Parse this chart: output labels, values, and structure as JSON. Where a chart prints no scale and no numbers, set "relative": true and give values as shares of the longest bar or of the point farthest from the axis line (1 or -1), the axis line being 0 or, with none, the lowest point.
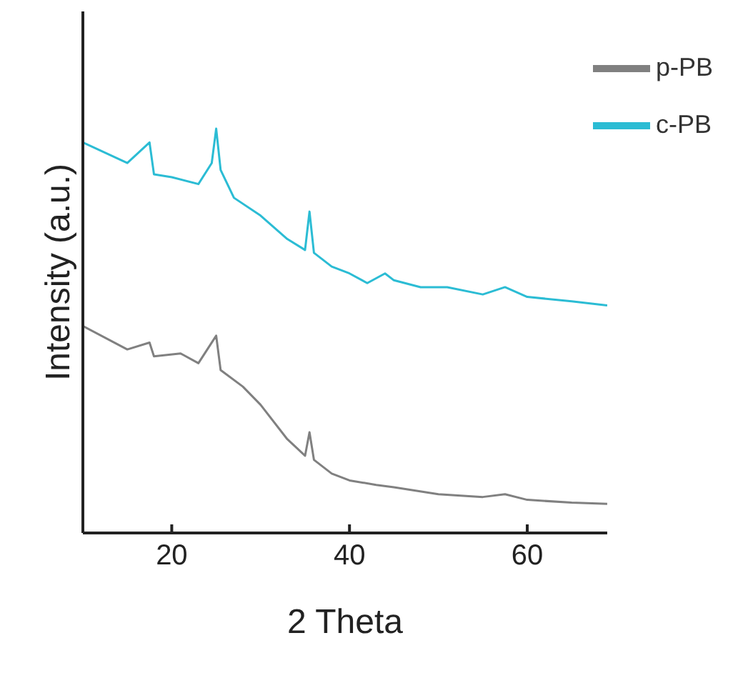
{
  "chart_data": {
    "type": "line",
    "xlabel": "2 Theta",
    "ylabel": "Intensity (a.u.)",
    "relative": true,
    "xlim": [
      10,
      69
    ],
    "xticks": [
      20,
      40,
      60
    ],
    "legend": "top right",
    "grid": false,
    "marker": "none",
    "line_style": "solid",
    "series": [
      {
        "name": "p-PB",
        "color": "#808080",
        "x": [
          10,
          15,
          17.5,
          18,
          21,
          23,
          25,
          25.5,
          28,
          30,
          33,
          35,
          35.5,
          36,
          38,
          40,
          43,
          45,
          50,
          55,
          57.5,
          60,
          65,
          69
        ],
        "values": [
          0.512,
          0.454,
          0.471,
          0.437,
          0.444,
          0.42,
          0.488,
          0.403,
          0.362,
          0.317,
          0.232,
          0.191,
          0.249,
          0.181,
          0.147,
          0.13,
          0.119,
          0.113,
          0.096,
          0.089,
          0.096,
          0.082,
          0.075,
          0.072
        ]
      },
      {
        "name": "c-PB",
        "color": "#2bbcd4",
        "x": [
          10,
          15,
          17.5,
          18,
          20,
          23,
          24.5,
          25,
          25.5,
          27,
          30,
          33,
          35,
          35.5,
          36,
          38,
          40,
          42,
          44,
          45,
          48,
          51,
          55,
          57.5,
          60,
          65,
          69
        ],
        "values": [
          0.966,
          0.915,
          0.966,
          0.887,
          0.88,
          0.863,
          0.915,
          1,
          0.898,
          0.829,
          0.785,
          0.727,
          0.7,
          0.795,
          0.693,
          0.659,
          0.642,
          0.618,
          0.642,
          0.625,
          0.608,
          0.608,
          0.59,
          0.608,
          0.584,
          0.573,
          0.563
        ]
      }
    ]
  }
}
